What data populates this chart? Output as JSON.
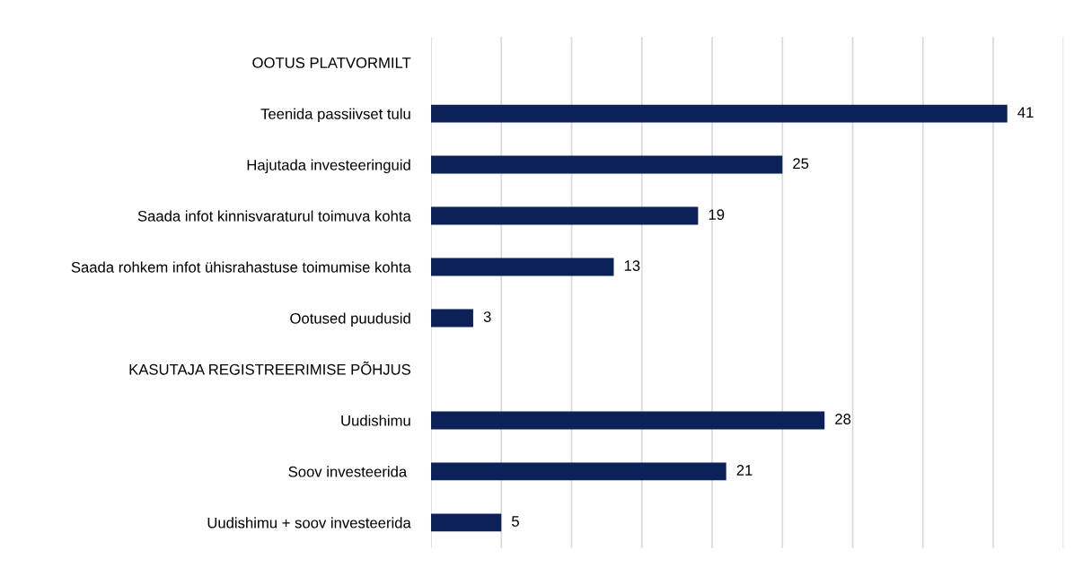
{
  "chart_data": {
    "type": "bar",
    "orientation": "horizontal",
    "categories": [
      "OOTUS PLATVORMILT",
      "Teenida passiivset tulu",
      "Hajutada investeeringuid",
      "Saada infot kinnisvaraturul toimuva kohta",
      "Saada rohkem infot ühisrahastuse toimumise kohta",
      "Ootused puudusid",
      "KASUTAJA REGISTREERIMISE PÕHJUS",
      "Uudishimu",
      "Soov investeerida ",
      "Uudishimu + soov investeerida"
    ],
    "values": [
      null,
      41,
      25,
      19,
      13,
      3,
      null,
      28,
      21,
      5
    ],
    "color": "#0b2158",
    "xlim": [
      0,
      45
    ],
    "xticks": [
      {
        "value": 0,
        "label": null
      },
      {
        "value": 5,
        "label": null
      },
      {
        "value": 10,
        "label": null
      },
      {
        "value": 15,
        "label": null
      },
      {
        "value": 20,
        "label": null
      },
      {
        "value": 25,
        "label": null
      },
      {
        "value": 30,
        "label": null
      },
      {
        "value": 35,
        "label": null
      },
      {
        "value": 40,
        "label": null
      },
      {
        "value": 45,
        "label": null
      }
    ],
    "tick_labels": "y",
    "grid": "x",
    "data_labels": true,
    "legend": false
  }
}
